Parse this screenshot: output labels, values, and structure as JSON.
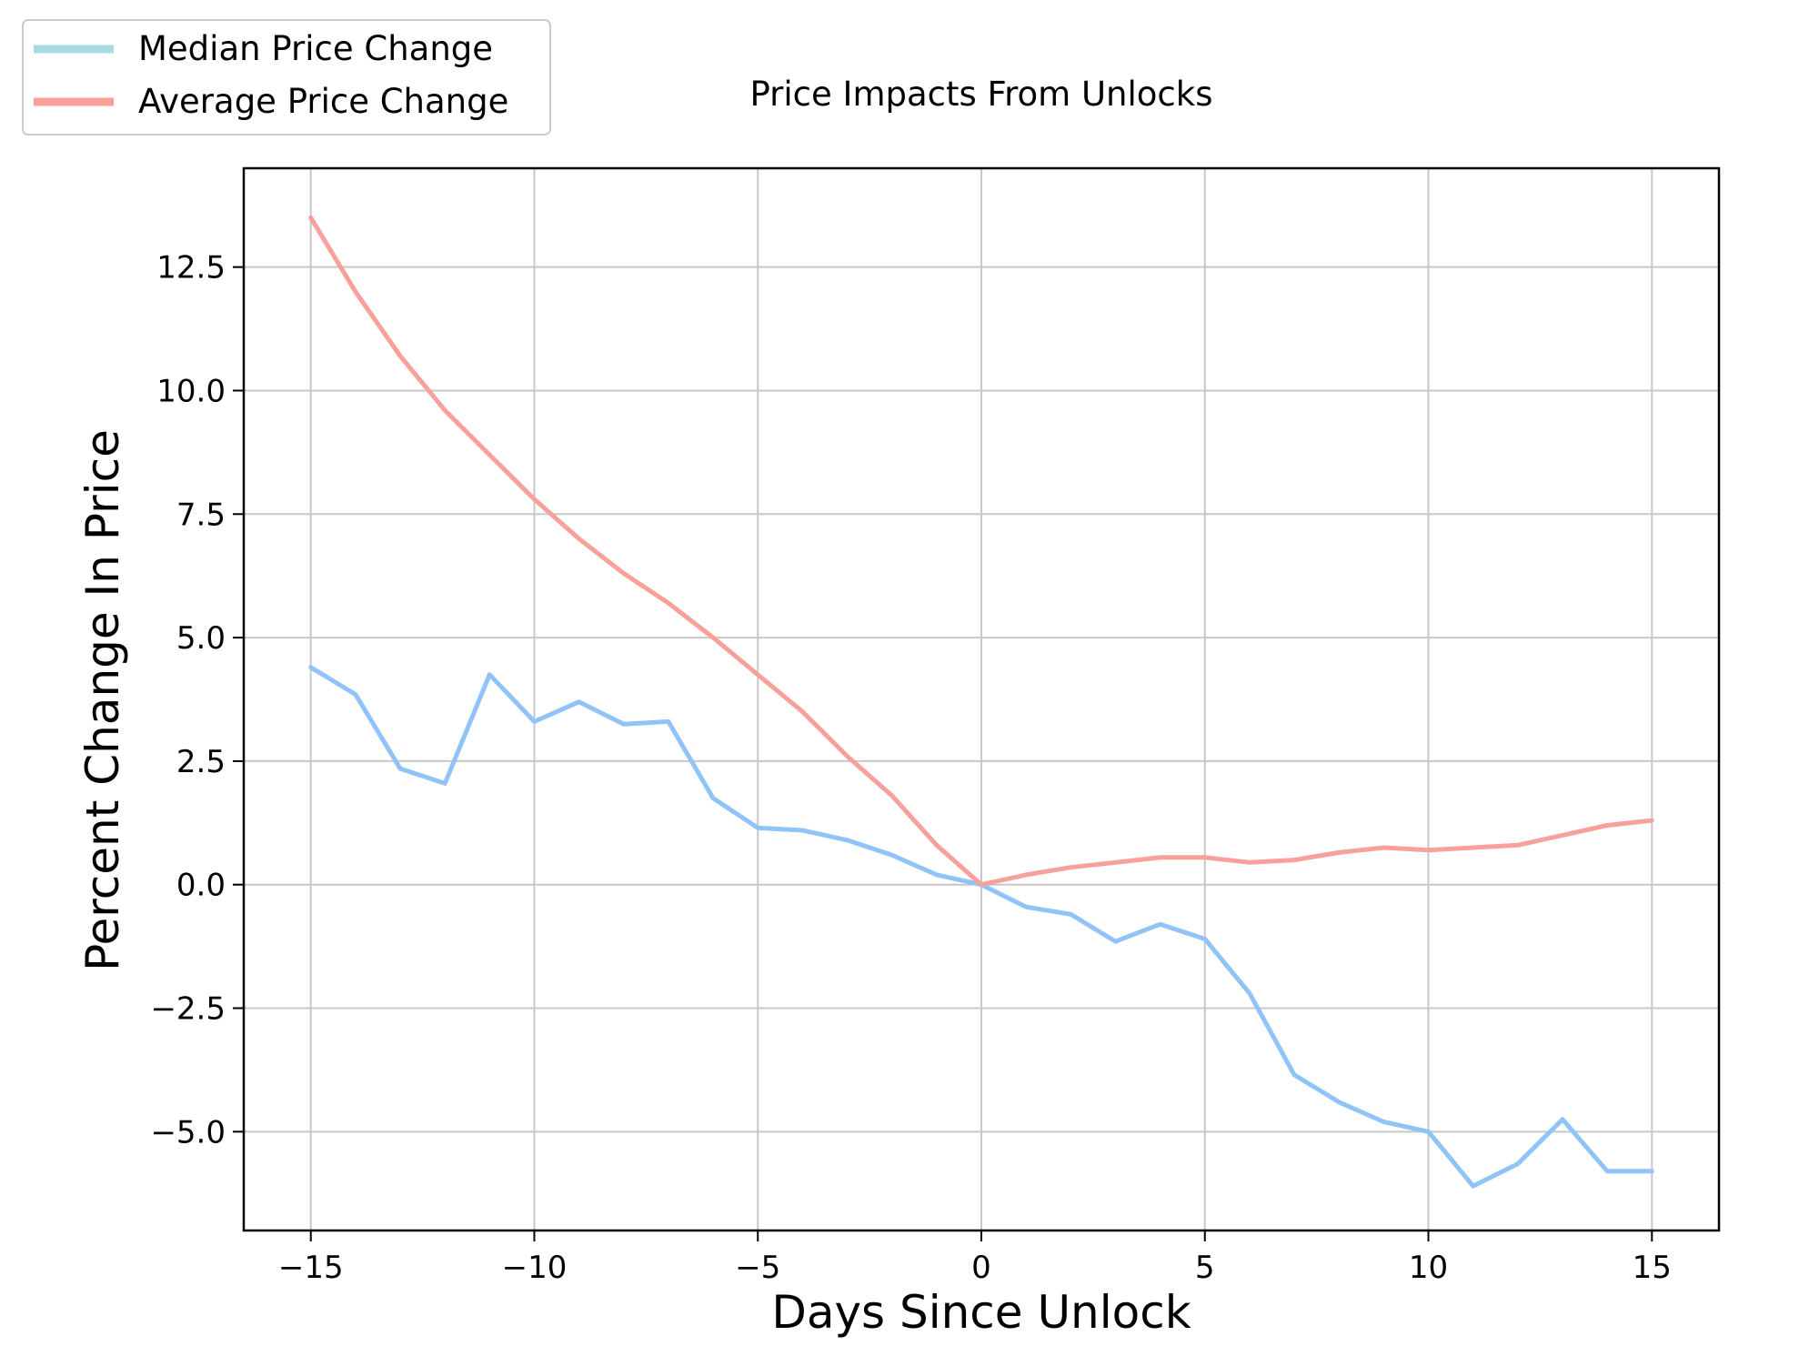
{
  "chart_data": {
    "type": "line",
    "title": "Price Impacts From Unlocks",
    "xlabel": "Days Since Unlock",
    "ylabel": "Percent Change In Price",
    "xlim": [
      -16.5,
      16.5
    ],
    "ylim": [
      -7,
      14.5
    ],
    "xticks": [
      -15,
      -10,
      -5,
      0,
      5,
      10,
      15
    ],
    "xtick_labels": [
      "−15",
      "−10",
      "−5",
      "0",
      "5",
      "10",
      "15"
    ],
    "yticks": [
      -5.0,
      -2.5,
      0.0,
      2.5,
      5.0,
      7.5,
      10.0,
      12.5
    ],
    "ytick_labels": [
      "−5.0",
      "−2.5",
      "0.0",
      "2.5",
      "5.0",
      "7.5",
      "10.0",
      "12.5"
    ],
    "grid": true,
    "legend_position": "top-left",
    "x": [
      -15,
      -14,
      -13,
      -12,
      -11,
      -10,
      -9,
      -8,
      -7,
      -6,
      -5,
      -4,
      -3,
      -2,
      -1,
      0,
      1,
      2,
      3,
      4,
      5,
      6,
      7,
      8,
      9,
      10,
      11,
      12,
      13,
      14,
      15
    ],
    "series": [
      {
        "name": "Median Price Change",
        "color": "#90c4f8",
        "legend_color": "#a8dbe0",
        "values": [
          4.4,
          3.85,
          2.35,
          2.05,
          4.25,
          3.3,
          3.7,
          3.25,
          3.3,
          1.75,
          1.15,
          1.1,
          0.9,
          0.6,
          0.2,
          0.0,
          -0.45,
          -0.6,
          -1.15,
          -0.8,
          -1.1,
          -2.2,
          -3.85,
          -4.4,
          -4.8,
          -5.0,
          -6.1,
          -5.65,
          -4.75,
          -5.8,
          -5.8
        ]
      },
      {
        "name": "Average Price Change",
        "color": "#f8a09a",
        "legend_color": "#f8a09a",
        "values": [
          13.5,
          12.0,
          10.7,
          9.6,
          8.7,
          7.8,
          7.0,
          6.3,
          5.7,
          5.0,
          4.25,
          3.5,
          2.6,
          1.8,
          0.8,
          0.0,
          0.2,
          0.35,
          0.45,
          0.55,
          0.55,
          0.45,
          0.5,
          0.65,
          0.75,
          0.7,
          0.75,
          0.8,
          1.0,
          1.2,
          1.3
        ]
      }
    ]
  }
}
